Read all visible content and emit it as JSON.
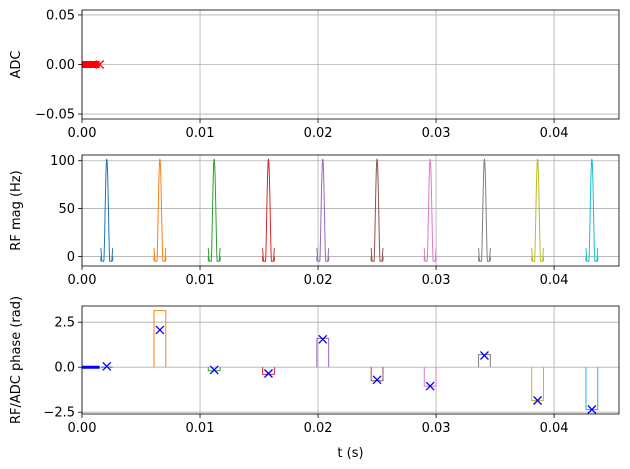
{
  "chart_data": [
    {
      "type": "line",
      "ylabel": "ADC",
      "xlim": [
        0,
        0.0455
      ],
      "ylim": [
        -0.055,
        0.055
      ],
      "xticks": [
        "0.00",
        "0.01",
        "0.02",
        "0.03",
        "0.04"
      ],
      "xtick_values": [
        0,
        0.01,
        0.02,
        0.03,
        0.04
      ],
      "yticks": [
        "0.05",
        "0.00",
        "−0.05"
      ],
      "ytick_values": [
        0.05,
        0,
        -0.05
      ],
      "grid": true,
      "series": [
        {
          "color": "#ff0000",
          "marker": "x",
          "x_start": 0,
          "x_end": 0.0015,
          "y": 0
        }
      ]
    },
    {
      "type": "line",
      "ylabel": "RF mag (Hz)",
      "xlim": [
        0,
        0.0455
      ],
      "ylim": [
        -10,
        106
      ],
      "xticks": [
        "0.00",
        "0.01",
        "0.02",
        "0.03",
        "0.04"
      ],
      "xtick_values": [
        0,
        0.01,
        0.02,
        0.03,
        0.04
      ],
      "yticks": [
        "100",
        "50",
        "0"
      ],
      "ytick_values": [
        100,
        50,
        0
      ],
      "grid": true,
      "pulse_width": 0.001,
      "pulse_peak": 102,
      "pulse_min": -5,
      "series": [
        {
          "center": 0.0021,
          "color": "#1f77b4"
        },
        {
          "center": 0.0066,
          "color": "#ff7f0e"
        },
        {
          "center": 0.0112,
          "color": "#2ca02c"
        },
        {
          "center": 0.0158,
          "color": "#d62728"
        },
        {
          "center": 0.0204,
          "color": "#9467bd"
        },
        {
          "center": 0.025,
          "color": "#8c564b"
        },
        {
          "center": 0.0295,
          "color": "#e377c2"
        },
        {
          "center": 0.0341,
          "color": "#7f7f7f"
        },
        {
          "center": 0.0386,
          "color": "#bcbd22"
        },
        {
          "center": 0.0432,
          "color": "#17becf"
        }
      ]
    },
    {
      "type": "line",
      "ylabel": "RF/ADC phase (rad)",
      "xlabel": "t (s)",
      "xlim": [
        0,
        0.0455
      ],
      "ylim": [
        -2.6,
        3.4
      ],
      "xticks": [
        "0.00",
        "0.01",
        "0.02",
        "0.03",
        "0.04"
      ],
      "xtick_values": [
        0,
        0.01,
        0.02,
        0.03,
        0.04
      ],
      "yticks": [
        "2.5",
        "0.0",
        "−2.5"
      ],
      "ytick_values": [
        2.5,
        0,
        -2.5
      ],
      "grid": true,
      "adc_line": {
        "color": "#0000ff",
        "x_start": 0,
        "x_end": 0.0015,
        "y": 0
      },
      "series": [
        {
          "x_start": 0.0016,
          "x_end": 0.0026,
          "phase": 0.0,
          "color": "#1f77b4",
          "marker_x": 0.0021,
          "marker_y": 0.05
        },
        {
          "x_start": 0.0061,
          "x_end": 0.0071,
          "phase": 3.14,
          "color": "#ff7f0e",
          "marker_x": 0.0066,
          "marker_y": 2.07
        },
        {
          "x_start": 0.0107,
          "x_end": 0.0117,
          "phase": -0.2,
          "color": "#2ca02c",
          "marker_x": 0.0112,
          "marker_y": -0.15
        },
        {
          "x_start": 0.0153,
          "x_end": 0.0163,
          "phase": -0.4,
          "color": "#d62728",
          "marker_x": 0.0158,
          "marker_y": -0.35
        },
        {
          "x_start": 0.0199,
          "x_end": 0.0209,
          "phase": 1.6,
          "color": "#9467bd",
          "marker_x": 0.0204,
          "marker_y": 1.55
        },
        {
          "x_start": 0.0245,
          "x_end": 0.0255,
          "phase": -0.75,
          "color": "#8c564b",
          "marker_x": 0.025,
          "marker_y": -0.7
        },
        {
          "x_start": 0.029,
          "x_end": 0.03,
          "phase": -1.05,
          "color": "#e377c2",
          "marker_x": 0.0295,
          "marker_y": -1.05
        },
        {
          "x_start": 0.0336,
          "x_end": 0.0346,
          "phase": 0.7,
          "color": "#7f7f7f",
          "marker_x": 0.0341,
          "marker_y": 0.65
        },
        {
          "x_start": 0.0381,
          "x_end": 0.0391,
          "phase": -1.85,
          "color": "#bcbd22",
          "marker_x": 0.0386,
          "marker_y": -1.85
        },
        {
          "x_start": 0.0427,
          "x_end": 0.0437,
          "phase": -2.35,
          "color": "#17becf",
          "marker_x": 0.0432,
          "marker_y": -2.35
        }
      ],
      "marker_color": "#0000ff"
    }
  ]
}
